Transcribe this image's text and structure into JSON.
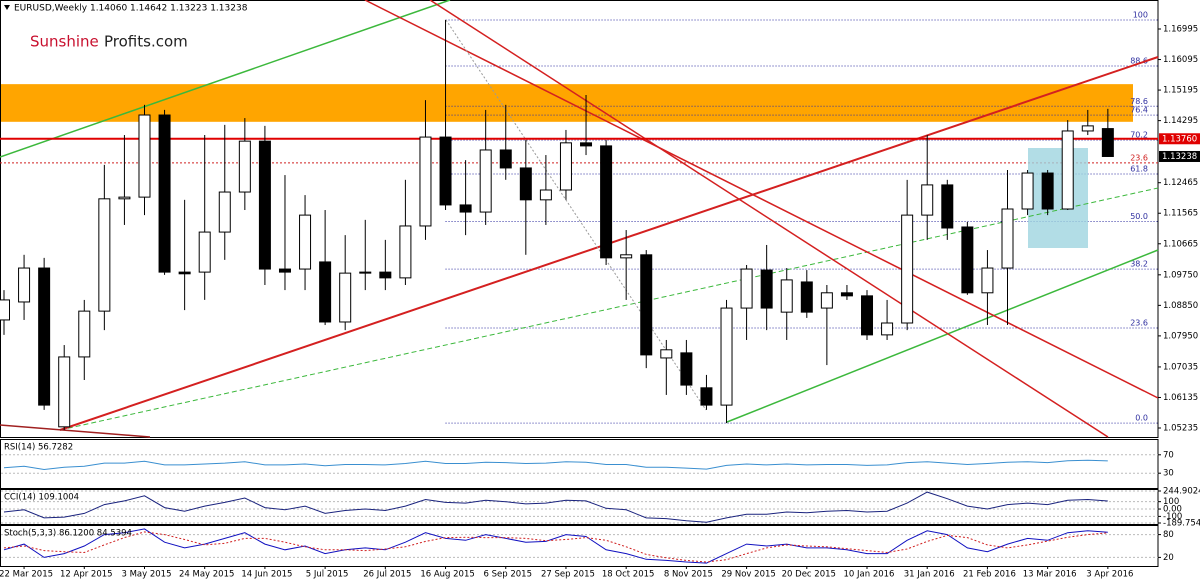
{
  "brand": [
    "Sunshine",
    "Profits.com"
  ],
  "chart_data": [
    {
      "type": "candlestick",
      "title": "EURUSD,Weekly  1.14060 1.14642 1.13223 1.13238",
      "categories": [
        null,
        "22 Mar 2015",
        null,
        null,
        "12 Apr 2015",
        null,
        null,
        "3 May 2015",
        null,
        null,
        "24 May 2015",
        null,
        null,
        "14 Jun 2015",
        null,
        null,
        "5 Jul 2015",
        null,
        null,
        "26 Jul 2015",
        null,
        null,
        "16 Aug 2015",
        null,
        null,
        "6 Sep 2015",
        null,
        null,
        "27 Sep 2015",
        null,
        null,
        "18 Oct 2015",
        null,
        null,
        "8 Nov 2015",
        null,
        null,
        "29 Nov 2015",
        null,
        null,
        "20 Dec 2015",
        null,
        null,
        "10 Jan 2016",
        null,
        null,
        "31 Jan 2016",
        null,
        null,
        "21 Feb 2016",
        null,
        null,
        "13 Mar 2016",
        null,
        null,
        "3 Apr 2016"
      ],
      "open": [
        1.0842,
        1.0895,
        1.0995,
        1.0527,
        1.0733,
        1.0868,
        1.1199,
        1.1204,
        1.1446,
        1.0983,
        1.0983,
        1.1101,
        1.1219,
        1.1369,
        1.0992,
        1.0992,
        1.1013,
        1.0836,
        1.098,
        1.0983,
        1.0966,
        1.1119,
        1.1381,
        1.1181,
        1.116,
        1.1343,
        1.129,
        1.1196,
        1.1225,
        1.1364,
        1.1355,
        1.1025,
        1.1034,
        1.073,
        1.0745,
        1.0642,
        1.0591,
        1.0877,
        1.0989,
        1.0865,
        1.0954,
        1.0877,
        1.0922,
        1.0913,
        1.0798,
        1.0833,
        1.1151,
        1.124,
        1.1116,
        1.0922,
        1.0995,
        1.1169,
        1.1275,
        1.1169,
        1.1399,
        1.1406
      ],
      "high": [
        1.093,
        1.1034,
        1.1025,
        1.0768,
        1.0901,
        1.1299,
        1.1387,
        1.1476,
        1.1461,
        1.1196,
        1.1387,
        1.1417,
        1.1437,
        1.1414,
        1.1269,
        1.121,
        1.1166,
        1.1092,
        1.1137,
        1.1078,
        1.1255,
        1.149,
        1.1726,
        1.1313,
        1.1461,
        1.1476,
        1.1372,
        1.1328,
        1.1402,
        1.1505,
        1.1372,
        1.1107,
        1.1048,
        1.0783,
        1.0783,
        1.068,
        1.0901,
        1.1004,
        1.1063,
        1.0995,
        1.0989,
        1.0945,
        1.0945,
        1.093,
        1.0901,
        1.1255,
        1.1387,
        1.1255,
        1.1131,
        1.1048,
        1.1284,
        1.1284,
        1.1284,
        1.1431,
        1.1461,
        1.14642
      ],
      "low": [
        1.0798,
        1.0842,
        1.0577,
        1.0518,
        1.0665,
        1.0812,
        1.1122,
        1.1151,
        1.0975,
        1.0871,
        1.0901,
        1.1019,
        1.1166,
        1.0945,
        1.093,
        1.093,
        1.0827,
        1.0812,
        1.093,
        1.093,
        1.0945,
        1.1078,
        1.1166,
        1.1092,
        1.1122,
        1.1255,
        1.1034,
        1.1122,
        1.1196,
        1.1328,
        1.1004,
        1.0901,
        1.07,
        1.0621,
        1.0621,
        1.0577,
        1.0538,
        1.0783,
        1.0812,
        1.0783,
        1.0848,
        1.0709,
        1.0901,
        1.0783,
        1.0783,
        1.0812,
        1.1078,
        1.1078,
        1.0916,
        1.0827,
        1.0827,
        1.1151,
        1.1151,
        1.1166,
        1.1387,
        1.13223
      ],
      "close": [
        1.0901,
        1.0995,
        1.0591,
        1.0733,
        1.0868,
        1.1199,
        1.1204,
        1.1446,
        1.0983,
        1.0978,
        1.1101,
        1.1219,
        1.1369,
        1.0992,
        1.0983,
        1.1151,
        1.0836,
        1.098,
        1.0983,
        1.0966,
        1.1119,
        1.1381,
        1.1181,
        1.116,
        1.1343,
        1.129,
        1.1196,
        1.1225,
        1.1364,
        1.1355,
        1.1025,
        1.1034,
        1.0739,
        1.0754,
        1.065,
        1.0591,
        1.0877,
        1.0992,
        1.0877,
        1.096,
        1.0865,
        1.0922,
        1.0913,
        1.0798,
        1.0833,
        1.1151,
        1.124,
        1.1113,
        1.0922,
        1.0995,
        1.1169,
        1.1275,
        1.1169,
        1.1399,
        1.1414,
        1.13238
      ],
      "ylim": [
        1.0497,
        1.1785
      ],
      "yticks": [
        1.16995,
        1.16095,
        1.15195,
        1.14295,
        1.12465,
        1.11565,
        1.10665,
        {
          "value": 1.0975,
          "label": "1.09750"
        },
        {
          "value": 1.0885,
          "label": "1.08850"
        },
        {
          "value": 1.0795,
          "label": "1.07950"
        },
        1.07035,
        1.06135,
        1.05235
      ],
      "zones": [
        {
          "from": 1.1426,
          "to": 1.1537,
          "color": "#ffa500"
        }
      ],
      "hlines": [
        {
          "value": 1.1376,
          "label": "1.13760",
          "color": "#e00000"
        }
      ],
      "fib": {
        "low": 1.0538,
        "high": 1.1726,
        "color": "#3030a0",
        "levels": [
          100,
          88.6,
          78.6,
          76.4,
          70.2,
          61.8,
          {
            "value": 50,
            "label": "50.0"
          },
          38.2,
          23.6,
          {
            "value": 0,
            "label": "0.0"
          }
        ]
      },
      "annotations": [
        {
          "text": "23.6",
          "y": 1.1305,
          "color": "#d02020"
        }
      ]
    },
    {
      "type": "line",
      "title": "RSI(14) 56.7282",
      "ylim": [
        0,
        100
      ],
      "yticks": [
        70,
        30
      ],
      "series": [
        {
          "color": "#3a8fd0",
          "values": [
            42,
            45,
            38,
            43,
            45,
            52,
            52,
            56,
            48,
            48,
            50,
            52,
            55,
            48,
            48,
            50,
            46,
            49,
            49,
            48,
            51,
            56,
            51,
            51,
            54,
            53,
            51,
            52,
            55,
            54,
            49,
            49,
            43,
            43,
            41,
            39,
            47,
            50,
            48,
            50,
            48,
            49,
            49,
            47,
            48,
            53,
            55,
            52,
            49,
            51,
            54,
            55,
            53,
            57,
            58,
            56.7282
          ]
        }
      ]
    },
    {
      "type": "line",
      "title": "CCI(14) 109.1004",
      "ylim": [
        -189.7549,
        244.9024
      ],
      "yticks": [
        244.9024,
        100,
        {
          "value": 0,
          "label": "0.00"
        },
        -100,
        -189.7549
      ],
      "series": [
        {
          "color": "#1a237e",
          "values": [
            -40,
            -10,
            -120,
            -110,
            -60,
            60,
            110,
            180,
            20,
            -30,
            40,
            90,
            150,
            20,
            -10,
            40,
            -60,
            -20,
            0,
            -20,
            40,
            130,
            90,
            80,
            120,
            100,
            70,
            80,
            120,
            110,
            10,
            -10,
            -120,
            -130,
            -160,
            -180,
            -120,
            -70,
            -70,
            -40,
            -50,
            -30,
            -20,
            -40,
            -30,
            80,
            230,
            140,
            40,
            0,
            60,
            80,
            60,
            120,
            130,
            109.1004
          ]
        }
      ]
    },
    {
      "type": "line",
      "title": "Stoch(5,3,3) 86.1200 84.5394",
      "ylim": [
        0,
        100
      ],
      "yticks": [
        80,
        20
      ],
      "series": [
        {
          "color": "#1010c0",
          "values": [
            40,
            55,
            20,
            30,
            50,
            80,
            85,
            95,
            60,
            45,
            55,
            70,
            85,
            55,
            40,
            50,
            30,
            40,
            45,
            40,
            60,
            85,
            70,
            65,
            80,
            70,
            60,
            62,
            80,
            75,
            40,
            30,
            15,
            12,
            8,
            5,
            30,
            55,
            50,
            55,
            45,
            45,
            40,
            30,
            30,
            65,
            90,
            80,
            45,
            35,
            55,
            70,
            65,
            85,
            90,
            86.12
          ]
        },
        {
          "color": "#d02020",
          "style": "dotted",
          "values": [
            45,
            50,
            38,
            35,
            33,
            53,
            72,
            87,
            80,
            67,
            53,
            57,
            70,
            70,
            60,
            48,
            40,
            40,
            38,
            42,
            48,
            62,
            72,
            73,
            72,
            72,
            70,
            64,
            67,
            72,
            65,
            48,
            28,
            19,
            12,
            8,
            14,
            30,
            45,
            53,
            50,
            48,
            43,
            38,
            33,
            42,
            62,
            78,
            72,
            53,
            45,
            53,
            63,
            73,
            80,
            84.5394
          ]
        }
      ]
    }
  ]
}
